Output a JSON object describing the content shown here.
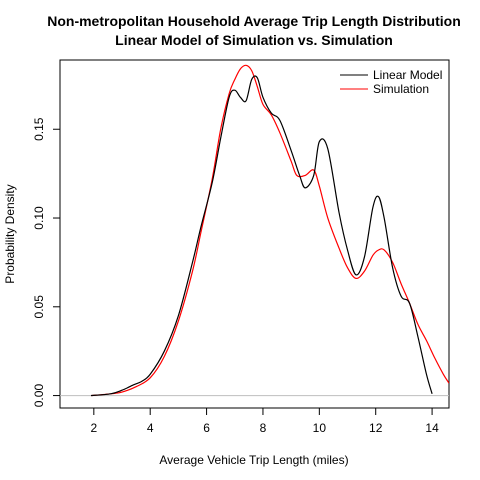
{
  "chart_data": {
    "type": "line",
    "title": "Non-metropolitan Household Average Trip Length Distribution",
    "subtitle": "Linear Model of Simulation vs. Simulation",
    "xlabel": "Average Vehicle Trip Length (miles)",
    "ylabel": "Probability Density",
    "xlim": [
      0.8,
      14.6
    ],
    "ylim": [
      -0.007,
      0.189
    ],
    "x_ticks": [
      2,
      4,
      6,
      8,
      10,
      12,
      14
    ],
    "y_ticks": [
      0.0,
      0.05,
      0.1,
      0.15
    ],
    "y_tick_labels": [
      "0.00",
      "0.05",
      "0.10",
      "0.15"
    ],
    "grid": false,
    "baseline_y": 0,
    "legend": {
      "position": "top-right"
    },
    "series": [
      {
        "name": "Linear Model",
        "color": "#000000",
        "x": [
          1.9,
          2.6,
          3.0,
          3.4,
          3.7,
          4.0,
          4.5,
          5.0,
          5.5,
          5.8,
          6.2,
          6.5,
          6.8,
          7.0,
          7.2,
          7.4,
          7.6,
          7.8,
          8.0,
          8.3,
          8.6,
          9.0,
          9.3,
          9.5,
          9.8,
          10.0,
          10.3,
          10.7,
          11.0,
          11.3,
          11.6,
          11.9,
          12.1,
          12.3,
          12.6,
          12.9,
          13.2,
          13.5,
          13.8,
          14.0
        ],
        "values": [
          0.0,
          0.001,
          0.003,
          0.006,
          0.008,
          0.012,
          0.025,
          0.045,
          0.075,
          0.095,
          0.12,
          0.145,
          0.168,
          0.172,
          0.168,
          0.166,
          0.178,
          0.179,
          0.168,
          0.159,
          0.155,
          0.138,
          0.124,
          0.117,
          0.124,
          0.143,
          0.139,
          0.103,
          0.082,
          0.068,
          0.078,
          0.106,
          0.112,
          0.1,
          0.072,
          0.056,
          0.052,
          0.033,
          0.012,
          0.001
        ]
      },
      {
        "name": "Simulation",
        "color": "#ff0000",
        "x": [
          1.9,
          2.6,
          3.0,
          3.5,
          4.0,
          4.5,
          5.0,
          5.5,
          5.8,
          6.2,
          6.5,
          6.8,
          7.0,
          7.2,
          7.4,
          7.6,
          7.8,
          8.0,
          8.3,
          8.6,
          9.0,
          9.2,
          9.5,
          9.8,
          10.0,
          10.3,
          10.7,
          11.0,
          11.3,
          11.6,
          11.9,
          12.1,
          12.3,
          12.6,
          12.9,
          13.2,
          13.5,
          13.8,
          14.1,
          14.4,
          14.6
        ],
        "values": [
          0.0,
          0.001,
          0.002,
          0.005,
          0.01,
          0.022,
          0.042,
          0.07,
          0.092,
          0.122,
          0.15,
          0.17,
          0.178,
          0.184,
          0.186,
          0.183,
          0.174,
          0.164,
          0.158,
          0.148,
          0.132,
          0.124,
          0.124,
          0.127,
          0.118,
          0.1,
          0.083,
          0.072,
          0.066,
          0.07,
          0.079,
          0.082,
          0.082,
          0.075,
          0.063,
          0.052,
          0.04,
          0.031,
          0.021,
          0.012,
          0.007
        ]
      }
    ]
  }
}
